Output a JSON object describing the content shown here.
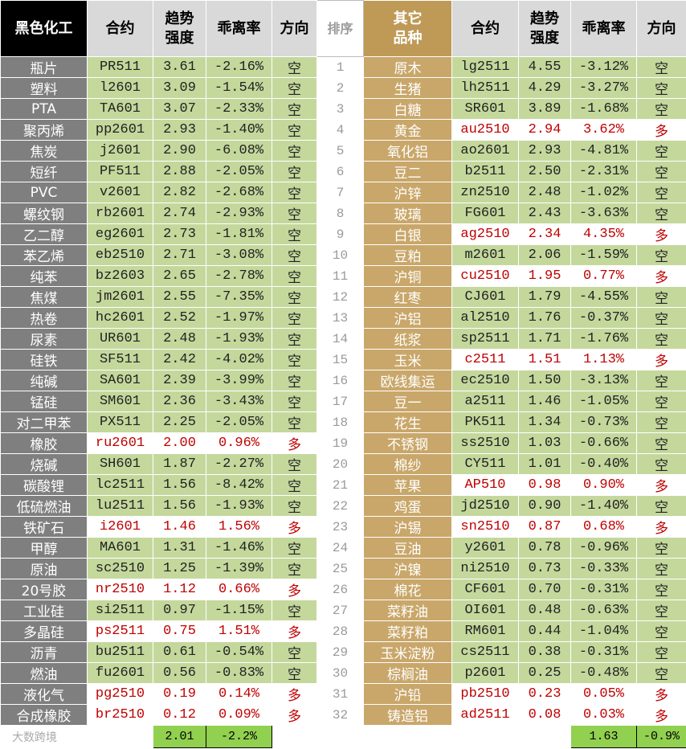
{
  "table": {
    "header": [
      "黑色化工",
      "合约",
      "趋势\n强度",
      "乖离率",
      "方向",
      "排序",
      "其它\n品种",
      "合约",
      "趋势\n强度",
      "乖离率",
      "方向"
    ],
    "rows": [
      [
        "瓶片",
        "PR511",
        "3.61",
        "-2.16%",
        "空",
        1,
        "原木",
        "lg2511",
        "4.55",
        "-3.12%",
        "空"
      ],
      [
        "塑料",
        "l2601",
        "3.09",
        "-1.54%",
        "空",
        2,
        "生猪",
        "lh2511",
        "4.29",
        "-3.27%",
        "空"
      ],
      [
        "PTA",
        "TA601",
        "3.07",
        "-2.33%",
        "空",
        3,
        "白糖",
        "SR601",
        "3.89",
        "-1.68%",
        "空"
      ],
      [
        "聚丙烯",
        "pp2601",
        "2.93",
        "-1.40%",
        "空",
        4,
        "黄金",
        "au2510",
        "2.94",
        "3.62%",
        "多"
      ],
      [
        "焦炭",
        "j2601",
        "2.90",
        "-6.08%",
        "空",
        5,
        "氧化铝",
        "ao2601",
        "2.93",
        "-4.81%",
        "空"
      ],
      [
        "短纤",
        "PF511",
        "2.88",
        "-2.05%",
        "空",
        6,
        "豆二",
        "b2511",
        "2.50",
        "-2.31%",
        "空"
      ],
      [
        "PVC",
        "v2601",
        "2.82",
        "-2.68%",
        "空",
        7,
        "沪锌",
        "zn2510",
        "2.48",
        "-1.02%",
        "空"
      ],
      [
        "螺纹钢",
        "rb2601",
        "2.74",
        "-2.93%",
        "空",
        8,
        "玻璃",
        "FG601",
        "2.43",
        "-3.63%",
        "空"
      ],
      [
        "乙二醇",
        "eg2601",
        "2.73",
        "-1.81%",
        "空",
        9,
        "白银",
        "ag2510",
        "2.34",
        "4.35%",
        "多"
      ],
      [
        "苯乙烯",
        "eb2510",
        "2.71",
        "-3.08%",
        "空",
        10,
        "豆粕",
        "m2601",
        "2.06",
        "-1.59%",
        "空"
      ],
      [
        "纯苯",
        "bz2603",
        "2.65",
        "-2.78%",
        "空",
        11,
        "沪铜",
        "cu2510",
        "1.95",
        "0.77%",
        "多"
      ],
      [
        "焦煤",
        "jm2601",
        "2.55",
        "-7.35%",
        "空",
        12,
        "红枣",
        "CJ601",
        "1.79",
        "-4.55%",
        "空"
      ],
      [
        "热卷",
        "hc2601",
        "2.52",
        "-1.97%",
        "空",
        13,
        "沪铝",
        "al2510",
        "1.76",
        "-0.37%",
        "空"
      ],
      [
        "尿素",
        "UR601",
        "2.48",
        "-1.93%",
        "空",
        14,
        "纸浆",
        "sp2511",
        "1.71",
        "-1.76%",
        "空"
      ],
      [
        "硅铁",
        "SF511",
        "2.42",
        "-4.02%",
        "空",
        15,
        "玉米",
        "c2511",
        "1.51",
        "1.13%",
        "多"
      ],
      [
        "纯碱",
        "SA601",
        "2.39",
        "-3.99%",
        "空",
        16,
        "欧线集运",
        "ec2510",
        "1.50",
        "-3.13%",
        "空"
      ],
      [
        "锰硅",
        "SM601",
        "2.36",
        "-3.43%",
        "空",
        17,
        "豆一",
        "a2511",
        "1.46",
        "-1.05%",
        "空"
      ],
      [
        "对二甲苯",
        "PX511",
        "2.25",
        "-2.05%",
        "空",
        18,
        "花生",
        "PK511",
        "1.34",
        "-0.73%",
        "空"
      ],
      [
        "橡胶",
        "ru2601",
        "2.00",
        "0.96%",
        "多",
        19,
        "不锈钢",
        "ss2510",
        "1.03",
        "-0.66%",
        "空"
      ],
      [
        "烧碱",
        "SH601",
        "1.87",
        "-2.27%",
        "空",
        20,
        "棉纱",
        "CY511",
        "1.01",
        "-0.40%",
        "空"
      ],
      [
        "碳酸锂",
        "lc2511",
        "1.56",
        "-8.42%",
        "空",
        21,
        "苹果",
        "AP510",
        "0.98",
        "0.90%",
        "多"
      ],
      [
        "低硫燃油",
        "lu2511",
        "1.56",
        "-1.93%",
        "空",
        22,
        "鸡蛋",
        "jd2510",
        "0.90",
        "-1.40%",
        "空"
      ],
      [
        "铁矿石",
        "i2601",
        "1.46",
        "1.56%",
        "多",
        23,
        "沪锡",
        "sn2510",
        "0.87",
        "0.68%",
        "多"
      ],
      [
        "甲醇",
        "MA601",
        "1.31",
        "-1.46%",
        "空",
        24,
        "豆油",
        "y2601",
        "0.78",
        "-0.96%",
        "空"
      ],
      [
        "原油",
        "sc2510",
        "1.25",
        "-1.39%",
        "空",
        25,
        "沪镍",
        "ni2510",
        "0.73",
        "-0.33%",
        "空"
      ],
      [
        "20号胶",
        "nr2510",
        "1.12",
        "0.66%",
        "多",
        26,
        "棉花",
        "CF601",
        "0.70",
        "-0.31%",
        "空"
      ],
      [
        "工业硅",
        "si2511",
        "0.97",
        "-1.15%",
        "空",
        27,
        "菜籽油",
        "OI601",
        "0.48",
        "-0.63%",
        "空"
      ],
      [
        "多晶硅",
        "ps2511",
        "0.75",
        "1.51%",
        "多",
        28,
        "菜籽粕",
        "RM601",
        "0.44",
        "-1.04%",
        "空"
      ],
      [
        "沥青",
        "bu2511",
        "0.61",
        "-0.54%",
        "空",
        29,
        "玉米淀粉",
        "cs2511",
        "0.38",
        "-0.31%",
        "空"
      ],
      [
        "燃油",
        "fu2601",
        "0.56",
        "-0.83%",
        "空",
        30,
        "棕榈油",
        "p2601",
        "0.25",
        "-0.48%",
        "空"
      ],
      [
        "液化气",
        "pg2510",
        "0.19",
        "0.14%",
        "多",
        31,
        "沪铅",
        "pb2510",
        "0.23",
        "0.05%",
        "多"
      ],
      [
        "合成橡胶",
        "br2510",
        "0.12",
        "0.09%",
        "多",
        32,
        "铸造铝",
        "ad2511",
        "0.08",
        "0.03%",
        "多"
      ]
    ],
    "footer": [
      "大数跨境",
      "2.01",
      "-2.2%",
      "1.63",
      "-0.9%"
    ]
  }
}
